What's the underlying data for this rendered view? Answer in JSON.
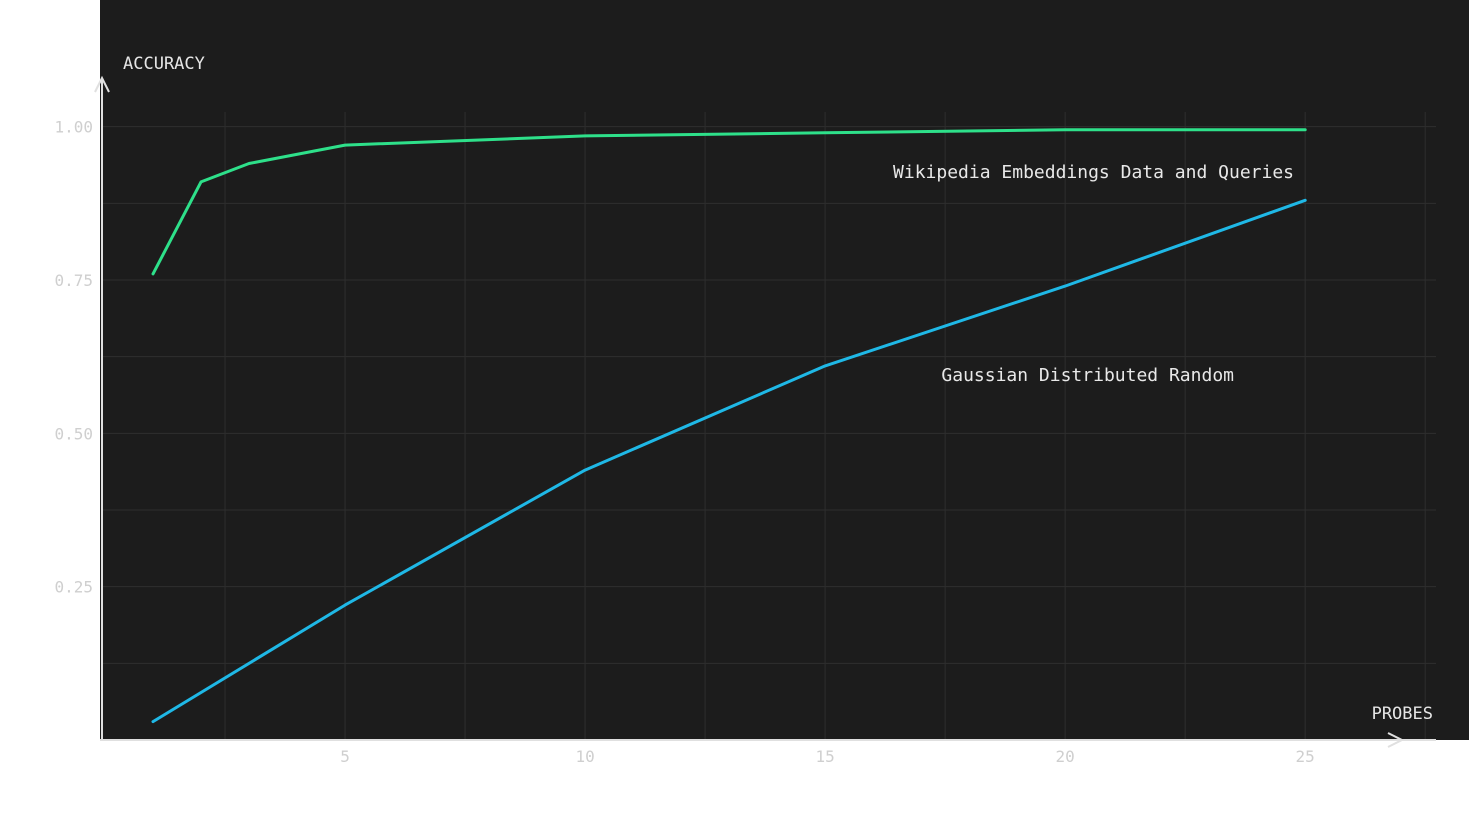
{
  "chart_data": {
    "type": "line",
    "xlabel": "PROBES",
    "ylabel": "ACCURACY",
    "xlim": [
      0,
      27.6
    ],
    "ylim": [
      0,
      1.2
    ],
    "x_ticks": [
      5,
      10,
      15,
      20,
      25
    ],
    "y_ticks": [
      0.25,
      0.5,
      0.75,
      1.0
    ],
    "x_tick_labels": [
      "5",
      "10",
      "15",
      "20",
      "25"
    ],
    "y_tick_labels": [
      "0.25",
      "0.50",
      "0.75",
      "1.00"
    ],
    "grid": true,
    "background": "#1c1c1c",
    "series": [
      {
        "name": "Wikipedia Embeddings Data and Queries",
        "color": "#2ee08a",
        "x": [
          1,
          2,
          3,
          5,
          10,
          15,
          20,
          25
        ],
        "y": [
          0.76,
          0.91,
          0.94,
          0.97,
          0.985,
          0.99,
          0.995,
          0.995
        ]
      },
      {
        "name": "Gaussian Distributed Random",
        "color": "#1fb8e6",
        "x": [
          1,
          5,
          10,
          15,
          20,
          25
        ],
        "y": [
          0.03,
          0.22,
          0.44,
          0.61,
          0.74,
          0.88
        ]
      }
    ]
  }
}
